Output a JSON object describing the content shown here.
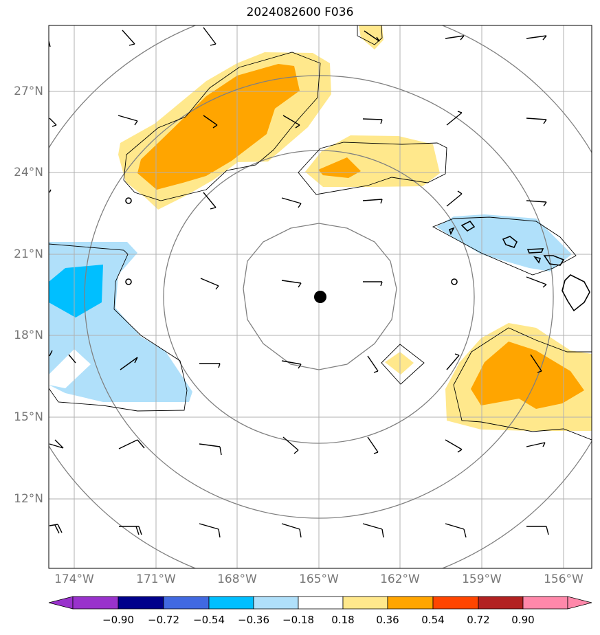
{
  "title": "2024082600 F036",
  "map": {
    "lon_range": [
      -174.6,
      -154.6
    ],
    "lat_range": [
      9.8,
      29.8
    ],
    "lat_labels": [
      "27°N",
      "24°N",
      "21°N",
      "18°N",
      "15°N",
      "12°N"
    ],
    "lon_labels": [
      "174°W",
      "171°W",
      "168°W",
      "165°W",
      "162°W",
      "159°W",
      "156°W"
    ],
    "center_marker": {
      "lon": -165.1,
      "lat": 19.5
    },
    "colors": {
      "grid": "#b0b0b0",
      "range_rings": "#808080",
      "contour": "#000000",
      "coast": "#000000"
    }
  },
  "colorbar": {
    "colors": [
      "#9932cc",
      "#00008b",
      "#4169e1",
      "#00bfff",
      "#b0e0fa",
      "#ffffff",
      "#ffe88c",
      "#ffa500",
      "#ff4500",
      "#b22222",
      "#ff88aa"
    ],
    "ticks": [
      "−0.90",
      "−0.72",
      "−0.54",
      "−0.36",
      "−0.18",
      "0.18",
      "0.36",
      "0.54",
      "0.72",
      "0.90"
    ]
  }
}
